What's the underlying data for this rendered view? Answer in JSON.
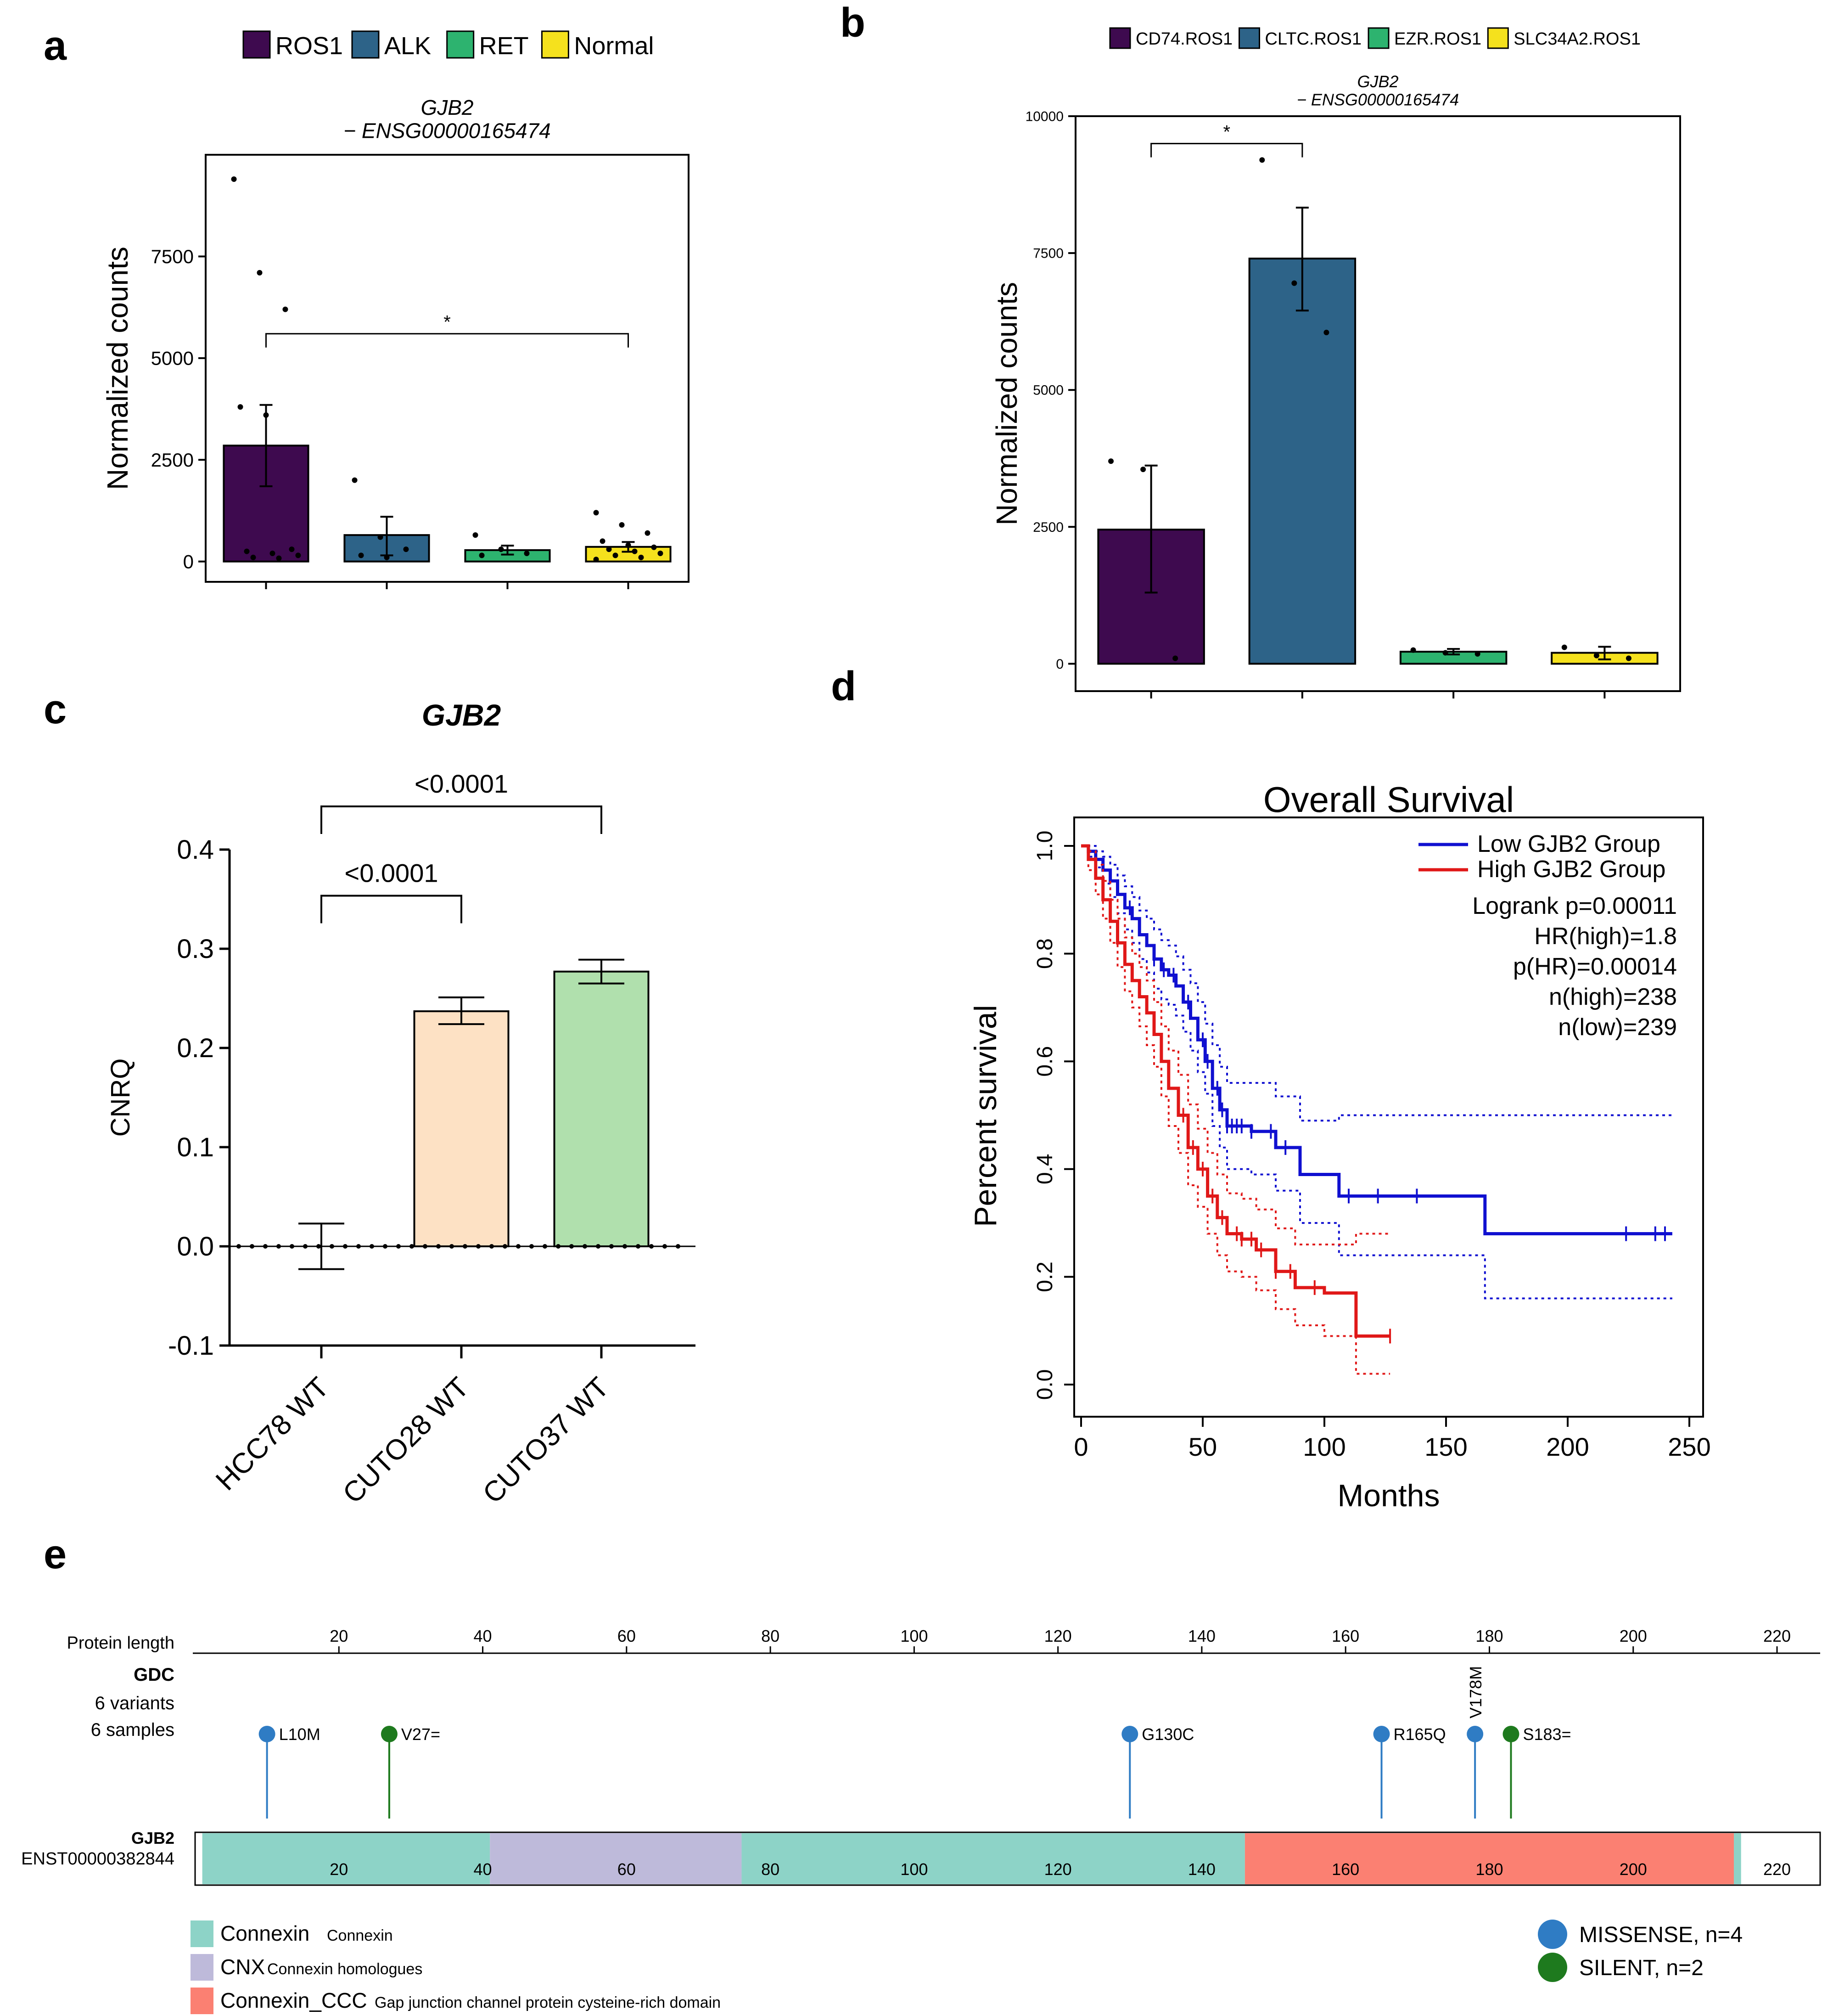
{
  "panel_labels": [
    "a",
    "b",
    "c",
    "d",
    "e"
  ],
  "chart_data": [
    {
      "panel": "a",
      "type": "bar",
      "title": "GJB2",
      "subtitle": "− ENSG00000165474",
      "ylabel": "Normalized counts",
      "xlabel": "",
      "ylim": [
        -500,
        10000
      ],
      "yticks": [
        0,
        2500,
        5000,
        7500
      ],
      "legend_entries": [
        "ROS1",
        "ALK",
        "RET",
        "Normal"
      ],
      "colors": [
        "#3e0a4f",
        "#2d6388",
        "#2db36f",
        "#f5e11d"
      ],
      "categories": [
        "ROS1",
        "ALK",
        "RET",
        "Normal"
      ],
      "values": [
        2850,
        650,
        280,
        360
      ],
      "error": [
        [
          1850,
          3850
        ],
        [
          150,
          1100
        ],
        [
          170,
          390
        ],
        [
          240,
          480
        ]
      ],
      "points": [
        [
          9400,
          7100,
          6200,
          3800,
          3600,
          300,
          250,
          200,
          150,
          100,
          80
        ],
        [
          2000,
          600,
          300,
          150,
          100
        ],
        [
          650,
          300,
          200,
          150
        ],
        [
          1200,
          900,
          700,
          500,
          400,
          350,
          300,
          250,
          200,
          150,
          100,
          50
        ]
      ],
      "significance": [
        {
          "from": 0,
          "to": 3,
          "label": "*",
          "y": 5600
        }
      ]
    },
    {
      "panel": "b",
      "type": "bar",
      "title": "GJB2",
      "subtitle": "− ENSG00000165474",
      "ylabel": "Normalized counts",
      "xlabel": "",
      "ylim": [
        -500,
        10000
      ],
      "yticks": [
        0,
        2500,
        5000,
        7500,
        10000
      ],
      "legend_entries": [
        "CD74.ROS1",
        "CLTC.ROS1",
        "EZR.ROS1",
        "SLC34A2.ROS1"
      ],
      "colors": [
        "#3e0a4f",
        "#2d6388",
        "#2db36f",
        "#f5e11d"
      ],
      "categories": [
        "CD74.ROS1",
        "CLTC.ROS1",
        "EZR.ROS1",
        "SLC34A2.ROS1"
      ],
      "values": [
        2450,
        7400,
        220,
        200
      ],
      "error": [
        [
          1300,
          3620
        ],
        [
          6450,
          8330
        ],
        [
          170,
          270
        ],
        [
          80,
          310
        ]
      ],
      "points": [
        [
          3700,
          3550,
          100
        ],
        [
          9200,
          6950,
          6050
        ],
        [
          250,
          200,
          180
        ],
        [
          300,
          150,
          100
        ]
      ],
      "significance": [
        {
          "from": 0,
          "to": 1,
          "label": "*",
          "y": 9500
        }
      ]
    },
    {
      "panel": "c",
      "type": "bar",
      "title": "GJB2",
      "ylabel": "CNRQ",
      "xlabel": "",
      "ylim": [
        -0.1,
        0.4
      ],
      "yticks": [
        -0.1,
        0.0,
        0.1,
        0.2,
        0.3,
        0.4
      ],
      "ytick_labels": [
        "-0.1",
        "0.0",
        "0.1",
        "0.2",
        "0.3",
        "0.4"
      ],
      "colors": [
        "#ffffff",
        "#fde1c4",
        "#b0e0ad"
      ],
      "categories": [
        "HCC78 WT",
        "CUTO28 WT",
        "CUTO37 WT"
      ],
      "values": [
        0.0,
        0.237,
        0.277
      ],
      "error": [
        [
          -0.023,
          0.023
        ],
        [
          0.224,
          0.251
        ],
        [
          0.265,
          0.289
        ]
      ],
      "significance": [
        {
          "from": 0,
          "to": 2,
          "label": "<0.0001",
          "y": 0.4435
        },
        {
          "from": 0,
          "to": 1,
          "label": "<0.0001",
          "y": 0.3535
        }
      ]
    },
    {
      "panel": "d",
      "type": "line",
      "title": "Overall Survival",
      "xlabel": "Months",
      "ylabel": "Percent survival",
      "xlim": [
        0,
        250
      ],
      "ylim": [
        0,
        1.0
      ],
      "xticks": [
        0,
        50,
        100,
        150,
        200,
        250
      ],
      "yticks": [
        0.0,
        0.2,
        0.4,
        0.6,
        0.8,
        1.0
      ],
      "ytick_labels": [
        "0.0",
        "0.2",
        "0.4",
        "0.6",
        "0.8",
        "1.0"
      ],
      "legend_entries": [
        "Low GJB2 Group",
        "High GJB2 Group"
      ],
      "annotations": [
        "Logrank p=0.00011",
        "HR(high)=1.8",
        "p(HR)=0.00014",
        "n(high)=238",
        "n(low)=239"
      ],
      "series": [
        {
          "name": "Low GJB2 Group",
          "color": "#1010d0",
          "x": [
            0,
            3,
            6,
            9,
            12,
            15,
            18,
            21,
            24,
            27,
            30,
            33,
            36,
            39,
            42,
            45,
            48,
            51,
            54,
            57,
            60,
            70,
            80,
            90,
            106,
            120,
            140,
            166,
            200,
            243
          ],
          "y": [
            1.0,
            0.99,
            0.975,
            0.955,
            0.935,
            0.91,
            0.885,
            0.865,
            0.835,
            0.815,
            0.79,
            0.77,
            0.76,
            0.74,
            0.71,
            0.68,
            0.64,
            0.6,
            0.55,
            0.51,
            0.48,
            0.47,
            0.44,
            0.39,
            0.35,
            0.35,
            0.35,
            0.28,
            0.28,
            0.28
          ],
          "upper": [
            1.0,
            1.0,
            0.99,
            0.98,
            0.965,
            0.945,
            0.925,
            0.905,
            0.88,
            0.865,
            0.845,
            0.825,
            0.815,
            0.795,
            0.77,
            0.745,
            0.71,
            0.67,
            0.63,
            0.59,
            0.56,
            0.56,
            0.535,
            0.49,
            0.5,
            0.5,
            0.5,
            0.5,
            0.5,
            0.5
          ],
          "lower": [
            1.0,
            0.98,
            0.96,
            0.93,
            0.905,
            0.875,
            0.845,
            0.82,
            0.79,
            0.765,
            0.735,
            0.715,
            0.705,
            0.685,
            0.655,
            0.62,
            0.58,
            0.54,
            0.48,
            0.44,
            0.4,
            0.39,
            0.36,
            0.3,
            0.24,
            0.24,
            0.24,
            0.16,
            0.16,
            0.16
          ]
        },
        {
          "name": "High GJB2 Group",
          "color": "#e01818",
          "x": [
            0,
            3,
            6,
            9,
            12,
            15,
            18,
            21,
            24,
            27,
            30,
            33,
            36,
            40,
            44,
            48,
            52,
            56,
            60,
            66,
            72,
            80,
            88,
            100,
            113,
            127
          ],
          "y": [
            1.0,
            0.975,
            0.94,
            0.9,
            0.86,
            0.82,
            0.78,
            0.75,
            0.72,
            0.69,
            0.65,
            0.6,
            0.55,
            0.5,
            0.44,
            0.4,
            0.35,
            0.31,
            0.28,
            0.27,
            0.25,
            0.21,
            0.18,
            0.17,
            0.09,
            0.09
          ],
          "upper": [
            1.0,
            0.99,
            0.965,
            0.935,
            0.9,
            0.865,
            0.83,
            0.8,
            0.775,
            0.75,
            0.71,
            0.665,
            0.62,
            0.575,
            0.52,
            0.475,
            0.43,
            0.39,
            0.355,
            0.345,
            0.325,
            0.29,
            0.26,
            0.26,
            0.28,
            0.28
          ],
          "lower": [
            1.0,
            0.955,
            0.91,
            0.865,
            0.82,
            0.775,
            0.73,
            0.7,
            0.665,
            0.63,
            0.59,
            0.535,
            0.48,
            0.43,
            0.37,
            0.33,
            0.28,
            0.24,
            0.21,
            0.2,
            0.175,
            0.14,
            0.11,
            0.09,
            0.02,
            0.02
          ]
        }
      ],
      "censor_marks": {
        "Low GJB2 Group": [
          20,
          30,
          34,
          38,
          44,
          50,
          52,
          56,
          58,
          60,
          62,
          64,
          66,
          70,
          78,
          84,
          110,
          122,
          138,
          224,
          236,
          240
        ],
        "High GJB2 Group": [
          42,
          46,
          50,
          54,
          58,
          64,
          66,
          70,
          74,
          80,
          86,
          96,
          127
        ]
      }
    },
    {
      "panel": "e",
      "type": "lollipop",
      "xlabel": "Protein length",
      "xlim": [
        0,
        226
      ],
      "xticks": [
        20,
        40,
        60,
        80,
        100,
        120,
        140,
        160,
        180,
        200,
        220
      ],
      "track_label": "GDC",
      "track_sublabels": [
        "6 variants",
        "6 samples"
      ],
      "gene": "GJB2",
      "transcript": "ENST00000382844",
      "protein_length": 226,
      "domains": [
        {
          "name": "Connexin",
          "start": 1,
          "end": 41,
          "color": "#8dd3c7"
        },
        {
          "name": "CNX",
          "start": 41,
          "end": 76,
          "color": "#bebada"
        },
        {
          "name": "Connexin",
          "start": 76,
          "end": 146,
          "color": "#8dd3c7"
        },
        {
          "name": "Connexin_CCC",
          "start": 146,
          "end": 214,
          "color": "#fb8072"
        },
        {
          "name": "Connexin",
          "start": 214,
          "end": 215,
          "color": "#8dd3c7"
        }
      ],
      "domain_ticks": [
        20,
        40,
        60,
        80,
        100,
        120,
        140,
        160,
        180,
        200,
        220
      ],
      "mutations": [
        {
          "label": "L10M",
          "pos": 10,
          "type": "MISSENSE"
        },
        {
          "label": "V27=",
          "pos": 27,
          "type": "SILENT"
        },
        {
          "label": "G130C",
          "pos": 130,
          "type": "MISSENSE"
        },
        {
          "label": "R165Q",
          "pos": 165,
          "type": "MISSENSE"
        },
        {
          "label": "V178M",
          "pos": 178,
          "type": "MISSENSE"
        },
        {
          "label": "S183=",
          "pos": 183,
          "type": "SILENT"
        }
      ],
      "mutation_colors": {
        "MISSENSE": "#2f7cc4",
        "SILENT": "#1e7a1e"
      },
      "domain_legend": [
        {
          "name": "Connexin",
          "desc": "Connexin",
          "color": "#8dd3c7"
        },
        {
          "name": "CNX",
          "desc": "Connexin homologues",
          "color": "#bebada"
        },
        {
          "name": "Connexin_CCC",
          "desc": "Gap junction channel protein cysteine-rich domain",
          "color": "#fb8072"
        }
      ],
      "mutation_legend": [
        {
          "label": "MISSENSE, n=4",
          "color": "#2f7cc4"
        },
        {
          "label": "SILENT, n=2",
          "color": "#1e7a1e"
        }
      ]
    }
  ]
}
